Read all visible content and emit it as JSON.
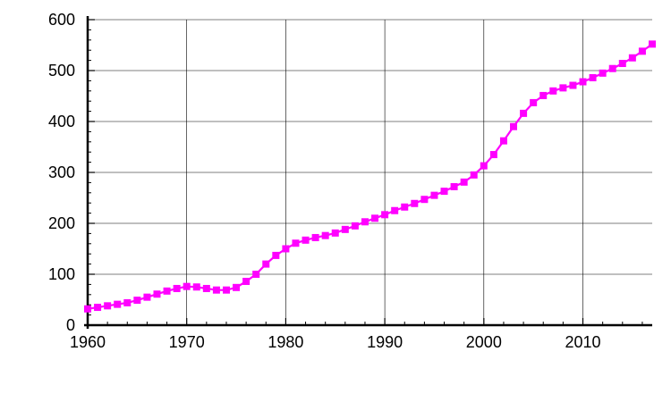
{
  "chart_data": {
    "type": "line",
    "title": "",
    "xlabel": "",
    "ylabel": "",
    "xlim": [
      1960,
      2017
    ],
    "ylim": [
      0,
      600
    ],
    "x_ticks": [
      1960,
      1970,
      1980,
      1990,
      2000,
      2010
    ],
    "y_ticks": [
      0,
      100,
      200,
      300,
      400,
      500,
      600
    ],
    "grid": true,
    "legend": "none",
    "series": [
      {
        "color": "#ff00ff",
        "marker": "square",
        "points": [
          [
            1960,
            32
          ],
          [
            1961,
            35
          ],
          [
            1962,
            38
          ],
          [
            1963,
            41
          ],
          [
            1964,
            44
          ],
          [
            1965,
            49
          ],
          [
            1966,
            55
          ],
          [
            1967,
            61
          ],
          [
            1968,
            67
          ],
          [
            1969,
            72
          ],
          [
            1970,
            76
          ],
          [
            1971,
            75
          ],
          [
            1972,
            72
          ],
          [
            1973,
            69
          ],
          [
            1974,
            69
          ],
          [
            1975,
            74
          ],
          [
            1976,
            86
          ],
          [
            1977,
            100
          ],
          [
            1978,
            120
          ],
          [
            1979,
            137
          ],
          [
            1980,
            150
          ],
          [
            1981,
            161
          ],
          [
            1982,
            167
          ],
          [
            1983,
            172
          ],
          [
            1984,
            176
          ],
          [
            1985,
            181
          ],
          [
            1986,
            188
          ],
          [
            1987,
            195
          ],
          [
            1988,
            203
          ],
          [
            1989,
            210
          ],
          [
            1990,
            217
          ],
          [
            1991,
            225
          ],
          [
            1992,
            232
          ],
          [
            1993,
            239
          ],
          [
            1994,
            247
          ],
          [
            1995,
            255
          ],
          [
            1996,
            263
          ],
          [
            1997,
            272
          ],
          [
            1998,
            281
          ],
          [
            1999,
            295
          ],
          [
            2000,
            313
          ],
          [
            2001,
            335
          ],
          [
            2002,
            362
          ],
          [
            2003,
            390
          ],
          [
            2004,
            416
          ],
          [
            2005,
            437
          ],
          [
            2006,
            451
          ],
          [
            2007,
            460
          ],
          [
            2008,
            466
          ],
          [
            2009,
            471
          ],
          [
            2010,
            478
          ],
          [
            2011,
            486
          ],
          [
            2012,
            495
          ],
          [
            2013,
            504
          ],
          [
            2014,
            514
          ],
          [
            2015,
            525
          ],
          [
            2016,
            538
          ],
          [
            2017,
            552
          ]
        ]
      }
    ]
  }
}
